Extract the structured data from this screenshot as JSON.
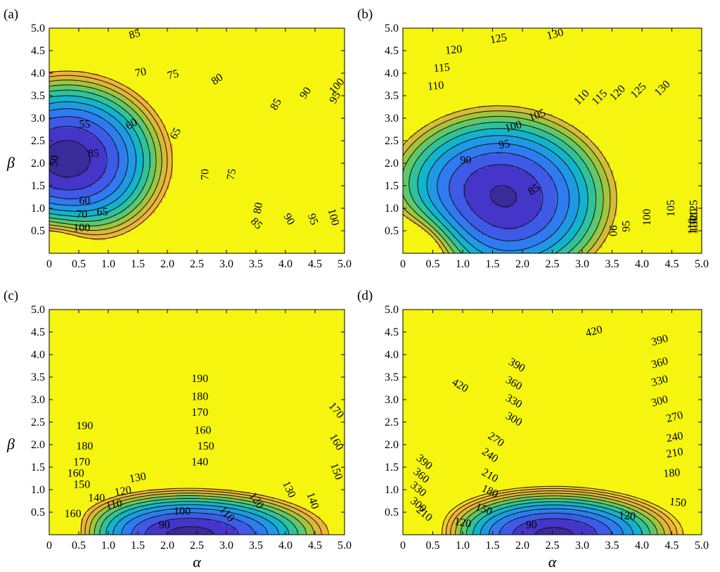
{
  "figure": {
    "xlabel": "α",
    "ylabel": "β",
    "xticks": [
      "0",
      "0.5",
      "1.0",
      "1.5",
      "2.0",
      "2.5",
      "3.0",
      "3.5",
      "4.0",
      "4.5",
      "5.0"
    ],
    "yticks": [
      "0.5",
      "1.0",
      "1.5",
      "2.0",
      "2.5",
      "3.0",
      "3.5",
      "4.0",
      "4.5",
      "5.0"
    ]
  },
  "chart_data": [
    {
      "panel_label": "(a)",
      "type": "heatmap",
      "subtype": "filled contour",
      "xlim": [
        0,
        5
      ],
      "ylim": [
        0,
        5
      ],
      "show_ylabel": true,
      "show_xlabel": false,
      "fill_ceiling_color": "#f5f510",
      "contour_levels": [
        50,
        55,
        60,
        65,
        70,
        75,
        80,
        85,
        90,
        95,
        100
      ],
      "field": {
        "kind": "ellipse",
        "center": [
          0.3,
          2.05
        ],
        "base": 47,
        "scale_x": 12,
        "scale_y": 12,
        "ax": 0.85,
        "ay": 0.95,
        "singularity": {
          "center": [
            0,
            0
          ],
          "strength": 10,
          "width": 0.45
        }
      },
      "labels": [
        {
          "text": "50",
          "x": 0.1,
          "y": 2.05,
          "rot": -80
        },
        {
          "text": "55",
          "x": 0.6,
          "y": 2.85,
          "rot": 0
        },
        {
          "text": "60",
          "x": 1.4,
          "y": 2.85,
          "rot": -30
        },
        {
          "text": "65",
          "x": 2.15,
          "y": 2.65,
          "rot": -60
        },
        {
          "text": "70",
          "x": 2.65,
          "y": 1.75,
          "rot": -90
        },
        {
          "text": "75",
          "x": 3.1,
          "y": 1.75,
          "rot": -80
        },
        {
          "text": "80",
          "x": 3.55,
          "y": 1.0,
          "rot": -80
        },
        {
          "text": "85",
          "x": 3.5,
          "y": 0.65,
          "rot": 45
        },
        {
          "text": "90",
          "x": 4.05,
          "y": 0.75,
          "rot": 60
        },
        {
          "text": "95",
          "x": 4.45,
          "y": 0.75,
          "rot": 70
        },
        {
          "text": "100",
          "x": 4.8,
          "y": 0.8,
          "rot": 75
        },
        {
          "text": "60",
          "x": 0.6,
          "y": 1.15,
          "rot": 0
        },
        {
          "text": "65",
          "x": 0.9,
          "y": 0.9,
          "rot": 0
        },
        {
          "text": "70",
          "x": 0.55,
          "y": 0.85,
          "rot": 0
        },
        {
          "text": "85",
          "x": 0.75,
          "y": 2.2,
          "rot": 0
        },
        {
          "text": "75",
          "x": 2.1,
          "y": 3.95,
          "rot": -15
        },
        {
          "text": "80",
          "x": 2.85,
          "y": 3.85,
          "rot": -35
        },
        {
          "text": "85",
          "x": 1.45,
          "y": 4.85,
          "rot": -15
        },
        {
          "text": "85",
          "x": 3.85,
          "y": 3.3,
          "rot": -60
        },
        {
          "text": "90",
          "x": 4.35,
          "y": 3.55,
          "rot": -55
        },
        {
          "text": "95",
          "x": 4.85,
          "y": 3.45,
          "rot": -60
        },
        {
          "text": "100",
          "x": 5.1,
          "y": 3.7,
          "rot": -50
        },
        {
          "text": "70",
          "x": 1.55,
          "y": 4.0,
          "rot": -10
        },
        {
          "text": "100",
          "x": 0.55,
          "y": 0.55,
          "rot": 0
        }
      ]
    },
    {
      "panel_label": "(b)",
      "type": "heatmap",
      "subtype": "filled contour",
      "xlim": [
        0,
        5
      ],
      "ylim": [
        0,
        5
      ],
      "show_ylabel": false,
      "show_xlabel": false,
      "fill_ceiling_color": "#f5f510",
      "contour_levels": [
        85,
        90,
        95,
        100,
        105,
        110,
        115,
        120,
        125,
        130
      ],
      "field": {
        "kind": "ellipse",
        "center": [
          1.6,
          1.2
        ],
        "base": 83,
        "scale_x": 12,
        "scale_y": 12,
        "ax": 1.0,
        "ay": 1.05,
        "singularity": {
          "center": [
            0,
            0
          ],
          "strength": 14,
          "width": 0.5
        }
      },
      "labels": [
        {
          "text": "130",
          "x": 2.55,
          "y": 4.85,
          "rot": -15
        },
        {
          "text": "125",
          "x": 1.6,
          "y": 4.75,
          "rot": -10
        },
        {
          "text": "120",
          "x": 0.85,
          "y": 4.5,
          "rot": -5
        },
        {
          "text": "115",
          "x": 0.65,
          "y": 4.1,
          "rot": -5
        },
        {
          "text": "110",
          "x": 0.55,
          "y": 3.7,
          "rot": -5
        },
        {
          "text": "105",
          "x": 2.25,
          "y": 3.05,
          "rot": -20
        },
        {
          "text": "100",
          "x": 1.85,
          "y": 2.8,
          "rot": -15
        },
        {
          "text": "95",
          "x": 1.7,
          "y": 2.4,
          "rot": -10
        },
        {
          "text": "90",
          "x": 1.05,
          "y": 2.05,
          "rot": 0
        },
        {
          "text": "85",
          "x": 2.2,
          "y": 1.4,
          "rot": -35
        },
        {
          "text": "90",
          "x": 3.5,
          "y": 0.5,
          "rot": 90
        },
        {
          "text": "95",
          "x": 3.75,
          "y": 0.6,
          "rot": -90
        },
        {
          "text": "100",
          "x": 4.1,
          "y": 0.8,
          "rot": -90
        },
        {
          "text": "105",
          "x": 4.5,
          "y": 1.0,
          "rot": -90
        },
        {
          "text": "110",
          "x": 4.85,
          "y": 0.6,
          "rot": -90
        },
        {
          "text": "115",
          "x": 5.15,
          "y": 0.6,
          "rot": -90
        },
        {
          "text": "120",
          "x": 5.45,
          "y": 0.8,
          "rot": -90
        },
        {
          "text": "125",
          "x": 5.65,
          "y": 1.0,
          "rot": -90
        },
        {
          "text": "130",
          "x": 5.95,
          "y": 0.65,
          "rot": -90
        },
        {
          "text": "110",
          "x": 3.0,
          "y": 3.45,
          "rot": -45
        },
        {
          "text": "115",
          "x": 3.3,
          "y": 3.45,
          "rot": -45
        },
        {
          "text": "120",
          "x": 3.6,
          "y": 3.55,
          "rot": -45
        },
        {
          "text": "125",
          "x": 3.95,
          "y": 3.6,
          "rot": -45
        },
        {
          "text": "130",
          "x": 4.35,
          "y": 3.65,
          "rot": -45
        }
      ]
    },
    {
      "panel_label": "(c)",
      "type": "heatmap",
      "subtype": "filled contour",
      "xlim": [
        0,
        5
      ],
      "ylim": [
        0,
        5
      ],
      "show_ylabel": true,
      "show_xlabel": true,
      "fill_ceiling_color": "#f5f510",
      "contour_levels": [
        90,
        100,
        110,
        120,
        130,
        140,
        150,
        160,
        170,
        180,
        190
      ],
      "field": {
        "kind": "ellipse",
        "center": [
          2.3,
          0.0
        ],
        "base": 85,
        "scale_x": 10,
        "scale_y": 10,
        "ax": 0.75,
        "ay": 0.32,
        "singularity": {
          "center": [
            0,
            0
          ],
          "strength": 22,
          "width": 0.55
        }
      },
      "labels": [
        {
          "text": "190",
          "x": 2.55,
          "y": 3.45,
          "rot": 0
        },
        {
          "text": "180",
          "x": 2.55,
          "y": 3.05,
          "rot": 0
        },
        {
          "text": "170",
          "x": 2.55,
          "y": 2.7,
          "rot": 0
        },
        {
          "text": "160",
          "x": 2.6,
          "y": 2.3,
          "rot": 0
        },
        {
          "text": "150",
          "x": 2.65,
          "y": 1.95,
          "rot": 0
        },
        {
          "text": "140",
          "x": 2.55,
          "y": 1.6,
          "rot": 0
        },
        {
          "text": "130",
          "x": 1.5,
          "y": 1.25,
          "rot": -10
        },
        {
          "text": "120",
          "x": 1.25,
          "y": 0.95,
          "rot": -10
        },
        {
          "text": "110",
          "x": 1.1,
          "y": 0.65,
          "rot": -10
        },
        {
          "text": "100",
          "x": 2.25,
          "y": 0.5,
          "rot": 0
        },
        {
          "text": "90",
          "x": 1.95,
          "y": 0.2,
          "rot": 0
        },
        {
          "text": "110",
          "x": 3.0,
          "y": 0.45,
          "rot": 50
        },
        {
          "text": "120",
          "x": 3.5,
          "y": 0.75,
          "rot": 55
        },
        {
          "text": "130",
          "x": 4.05,
          "y": 1.0,
          "rot": 65
        },
        {
          "text": "140",
          "x": 4.45,
          "y": 0.75,
          "rot": 70
        },
        {
          "text": "150",
          "x": 4.85,
          "y": 1.4,
          "rot": 70
        },
        {
          "text": "160",
          "x": 4.85,
          "y": 2.05,
          "rot": 60
        },
        {
          "text": "170",
          "x": 4.85,
          "y": 2.75,
          "rot": 50
        },
        {
          "text": "190",
          "x": 0.6,
          "y": 2.4,
          "rot": 0
        },
        {
          "text": "180",
          "x": 0.6,
          "y": 1.95,
          "rot": 0
        },
        {
          "text": "170",
          "x": 0.55,
          "y": 1.6,
          "rot": 0
        },
        {
          "text": "160",
          "x": 0.45,
          "y": 1.35,
          "rot": 0
        },
        {
          "text": "150",
          "x": 0.55,
          "y": 1.1,
          "rot": 0
        },
        {
          "text": "140",
          "x": 0.8,
          "y": 0.8,
          "rot": 0
        },
        {
          "text": "160",
          "x": 0.4,
          "y": 0.45,
          "rot": 0
        }
      ]
    },
    {
      "panel_label": "(d)",
      "type": "heatmap",
      "subtype": "filled contour",
      "xlim": [
        0,
        5
      ],
      "ylim": [
        0,
        5
      ],
      "show_ylabel": false,
      "show_xlabel": true,
      "fill_ceiling_color": "#f5f510",
      "contour_levels": [
        90,
        120,
        150,
        180,
        210,
        240,
        270,
        300,
        330,
        360,
        390,
        420
      ],
      "field": {
        "kind": "ellipse",
        "center": [
          2.5,
          0.0
        ],
        "base": 80,
        "scale_x": 30,
        "scale_y": 30,
        "ax": 0.65,
        "ay": 0.32,
        "singularity": {
          "center": [
            0,
            0
          ],
          "strength": 60,
          "width": 0.5
        }
      },
      "labels": [
        {
          "text": "420",
          "x": 3.2,
          "y": 4.5,
          "rot": -15
        },
        {
          "text": "390",
          "x": 4.3,
          "y": 4.3,
          "rot": -15
        },
        {
          "text": "360",
          "x": 4.3,
          "y": 3.8,
          "rot": -15
        },
        {
          "text": "330",
          "x": 4.3,
          "y": 3.4,
          "rot": -15
        },
        {
          "text": "300",
          "x": 4.3,
          "y": 2.95,
          "rot": -15
        },
        {
          "text": "270",
          "x": 4.55,
          "y": 2.6,
          "rot": -15
        },
        {
          "text": "240",
          "x": 4.55,
          "y": 2.15,
          "rot": -10
        },
        {
          "text": "210",
          "x": 4.55,
          "y": 1.8,
          "rot": -10
        },
        {
          "text": "180",
          "x": 4.5,
          "y": 1.35,
          "rot": -5
        },
        {
          "text": "150",
          "x": 4.6,
          "y": 0.7,
          "rot": 5
        },
        {
          "text": "120",
          "x": 3.75,
          "y": 0.4,
          "rot": 5
        },
        {
          "text": "90",
          "x": 2.15,
          "y": 0.2,
          "rot": 0
        },
        {
          "text": "120",
          "x": 1.0,
          "y": 0.25,
          "rot": 10
        },
        {
          "text": "150",
          "x": 1.35,
          "y": 0.55,
          "rot": 20
        },
        {
          "text": "180",
          "x": 1.45,
          "y": 0.95,
          "rot": 25
        },
        {
          "text": "210",
          "x": 1.45,
          "y": 1.3,
          "rot": 30
        },
        {
          "text": "240",
          "x": 1.45,
          "y": 1.75,
          "rot": 35
        },
        {
          "text": "270",
          "x": 1.55,
          "y": 2.1,
          "rot": 35
        },
        {
          "text": "300",
          "x": 1.85,
          "y": 2.55,
          "rot": 30
        },
        {
          "text": "330",
          "x": 1.85,
          "y": 2.95,
          "rot": 30
        },
        {
          "text": "360",
          "x": 1.85,
          "y": 3.35,
          "rot": 30
        },
        {
          "text": "390",
          "x": 1.9,
          "y": 3.75,
          "rot": 30
        },
        {
          "text": "420",
          "x": 0.95,
          "y": 3.3,
          "rot": 30
        },
        {
          "text": "390",
          "x": 0.35,
          "y": 1.6,
          "rot": 40
        },
        {
          "text": "360",
          "x": 0.3,
          "y": 1.3,
          "rot": 40
        },
        {
          "text": "330",
          "x": 0.25,
          "y": 1.0,
          "rot": 40
        },
        {
          "text": "300",
          "x": 0.25,
          "y": 0.65,
          "rot": 40
        },
        {
          "text": "210",
          "x": 0.35,
          "y": 0.45,
          "rot": 40
        }
      ]
    }
  ]
}
